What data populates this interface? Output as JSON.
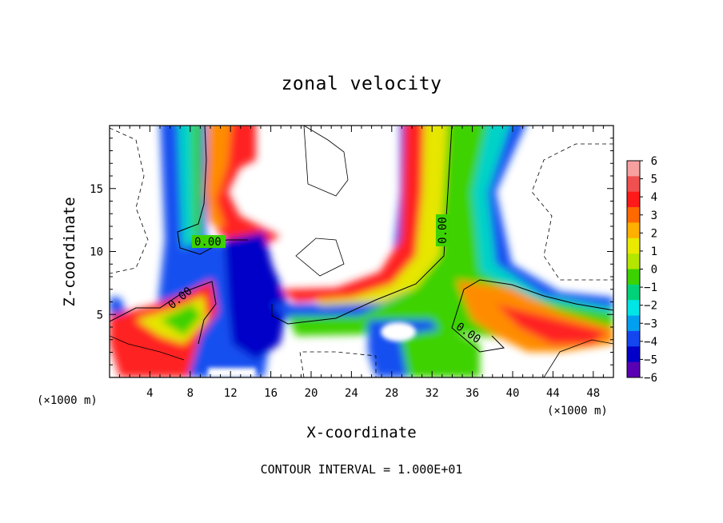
{
  "chart_data": {
    "type": "heatmap",
    "title": "zonal velocity",
    "xlabel": "X-coordinate",
    "ylabel": "Z-coordinate",
    "x_unit": "(×1000 m)",
    "z_unit": "(×1000 m)",
    "xlim": [
      0,
      50
    ],
    "ylim": [
      0,
      20
    ],
    "x_ticks": [
      "4",
      "8",
      "12",
      "16",
      "20",
      "24",
      "28",
      "32",
      "36",
      "40",
      "44",
      "48"
    ],
    "y_ticks": [
      "5",
      "10",
      "15"
    ],
    "colorbar": {
      "labels": [
        "6",
        "5",
        "4",
        "3",
        "2",
        "1",
        "0",
        "−1",
        "−2",
        "−3",
        "−4",
        "−5",
        "−6"
      ],
      "colors": [
        "#f7a0a0",
        "#f05050",
        "#ff1a1a",
        "#ff6a00",
        "#ffb000",
        "#eaea00",
        "#b4e600",
        "#3cd200",
        "#00d27a",
        "#00e6e6",
        "#00a0f0",
        "#1446f0",
        "#0000c8",
        "#5a00b4"
      ]
    },
    "contour_labels": [
      "0.00",
      "0.00",
      "0.00",
      "0.00"
    ],
    "contour_interval_text": "CONTOUR INTERVAL = 1.000E+01"
  },
  "colors": {
    "red": "#ff2020",
    "orange": "#ff8c00",
    "yellow": "#e6e600",
    "green": "#3cd200",
    "cyan": "#00d2c8",
    "blue": "#1450f0",
    "darkblue": "#0000c8",
    "purple": "#5a00b4"
  }
}
